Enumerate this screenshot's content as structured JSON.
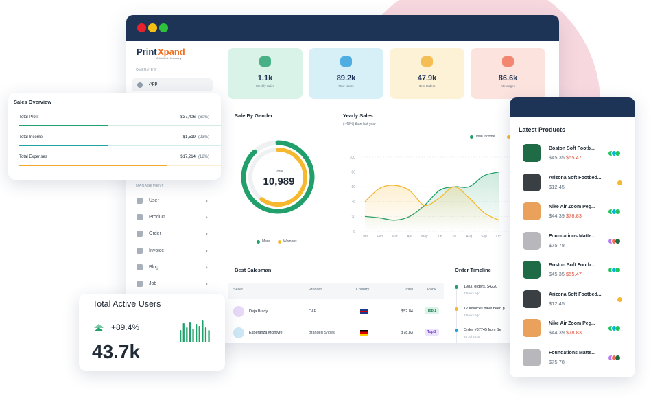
{
  "brand": {
    "part1": "Print",
    "part2": "Xpand",
    "tagline": "A Minitech Company"
  },
  "sidebar": {
    "overview": "OVERVIEW",
    "overview_items": [
      "App"
    ],
    "management": "MANAGEMENT",
    "management_items": [
      "User",
      "Product",
      "Order",
      "Invoice",
      "Blog",
      "Job"
    ]
  },
  "stats": [
    {
      "value": "1.1k",
      "label": "Weekly Sales",
      "color": "#d9f3e8",
      "icon": "#22a06b"
    },
    {
      "value": "89.2k",
      "label": "New Users",
      "color": "#d7f0f8",
      "icon": "#2d9cdb"
    },
    {
      "value": "47.9k",
      "label": "Item Orders",
      "color": "#fdf1d6",
      "icon": "#f2b134"
    },
    {
      "value": "86.6k",
      "label": "Messages",
      "color": "#fde3de",
      "icon": "#f06e55"
    }
  ],
  "sales_overview": {
    "title": "Sales Overview",
    "rows": [
      {
        "label": "Total Profit",
        "amount": "$37,406",
        "percent": "(60%)",
        "progress": 44,
        "color": "#22a06b"
      },
      {
        "label": "Total Income",
        "amount": "$1,519",
        "percent": "(23%)",
        "progress": 44,
        "color": "#1ea5a0"
      },
      {
        "label": "Total Expenses",
        "amount": "$17,214",
        "percent": "(12%)",
        "progress": 73,
        "color": "#f2a92c"
      }
    ]
  },
  "sale_by_gender": {
    "title": "Sale By Gender",
    "total_label": "Total",
    "total": "10,989",
    "series": [
      {
        "name": "Mens",
        "color": "#22a06b",
        "value": 88
      },
      {
        "name": "Womens",
        "color": "#f5b82e",
        "value": 60
      }
    ]
  },
  "yearly_sales": {
    "title": "Yearly Sales",
    "subtitle": "(+43%) than last year",
    "categories": [
      "Jan",
      "Feb",
      "Mar",
      "Apr",
      "May",
      "Jun",
      "Jul",
      "Aug",
      "Sep",
      "Oct"
    ],
    "ylim": [
      0,
      100
    ],
    "yticks": [
      0,
      20,
      40,
      60,
      80,
      100
    ],
    "series": [
      {
        "name": "Total Income",
        "color": "#22a06b",
        "values": [
          20,
          18,
          15,
          20,
          35,
          55,
          60,
          60,
          75,
          80
        ]
      },
      {
        "color": "#f5b82e",
        "values": [
          40,
          58,
          62,
          55,
          35,
          45,
          60,
          45,
          25,
          15
        ]
      }
    ]
  },
  "best_salesman": {
    "title": "Best Salesman",
    "headers": [
      "Seller",
      "Product",
      "Country",
      "Total",
      "Rank"
    ],
    "rows": [
      {
        "seller": "Deja Brady",
        "product": "CAP",
        "total": "$52.84",
        "rank": "Top 1"
      },
      {
        "seller": "Esperanza Mcintyre",
        "product": "Branded Shoes",
        "total": "$78.83",
        "rank": "Top 2"
      }
    ]
  },
  "order_timeline": {
    "title": "Order Timeline",
    "items": [
      {
        "text": "1983, orders, $4220",
        "time": "2 hours ago",
        "color": "#22a06b"
      },
      {
        "text": "12 Invoices have been p",
        "time": "2 hours ago",
        "color": "#f5b82e"
      },
      {
        "text": "Order #37745 from Se",
        "time": "25 Jul 2020",
        "color": "#1ea5d8"
      }
    ]
  },
  "active_users": {
    "title": "Total Active Users",
    "change": "+89.4%",
    "value": "43.7k",
    "bars": [
      18,
      28,
      22,
      30,
      20,
      27,
      24,
      32,
      22,
      18
    ]
  },
  "latest_products": {
    "title": "Latest Products",
    "items": [
      {
        "name": "Boston Soft Footb...",
        "price": "$45.35",
        "sale": "$55.47",
        "img": "#1f6b46",
        "dots": [
          "#22c55e",
          "#00b8d9",
          "#22c55e"
        ]
      },
      {
        "name": "Arizona Soft Footbed...",
        "price": "$12.45",
        "img": "#3a3f44",
        "dots": [
          "#f5b82e"
        ]
      },
      {
        "name": "Nike Air Zoom Peg...",
        "price": "$44.39",
        "sale": "$78.83",
        "img": "#e9a15c",
        "dots": [
          "#22c55e",
          "#00b8d9",
          "#22c55e"
        ]
      },
      {
        "name": "Foundations Matte...",
        "price": "$75.78",
        "img": "#b8b8bc",
        "dots": [
          "#b57bf0",
          "#f06e55",
          "#1f6b46"
        ]
      },
      {
        "name": "Boston Soft Footb...",
        "price": "$45.35",
        "sale": "$55.47",
        "img": "#1f6b46",
        "dots": [
          "#22c55e",
          "#00b8d9",
          "#22c55e"
        ]
      },
      {
        "name": "Arizona Soft Footbed...",
        "price": "$12.45",
        "img": "#3a3f44",
        "dots": [
          "#f5b82e"
        ]
      },
      {
        "name": "Nike Air Zoom Peg...",
        "price": "$44.39",
        "sale": "$78.83",
        "img": "#e9a15c",
        "dots": [
          "#22c55e",
          "#00b8d9",
          "#22c55e"
        ]
      },
      {
        "name": "Foundations Matte...",
        "price": "$75.78",
        "img": "#b8b8bc",
        "dots": [
          "#b57bf0",
          "#f06e55",
          "#1f6b46"
        ]
      }
    ]
  }
}
